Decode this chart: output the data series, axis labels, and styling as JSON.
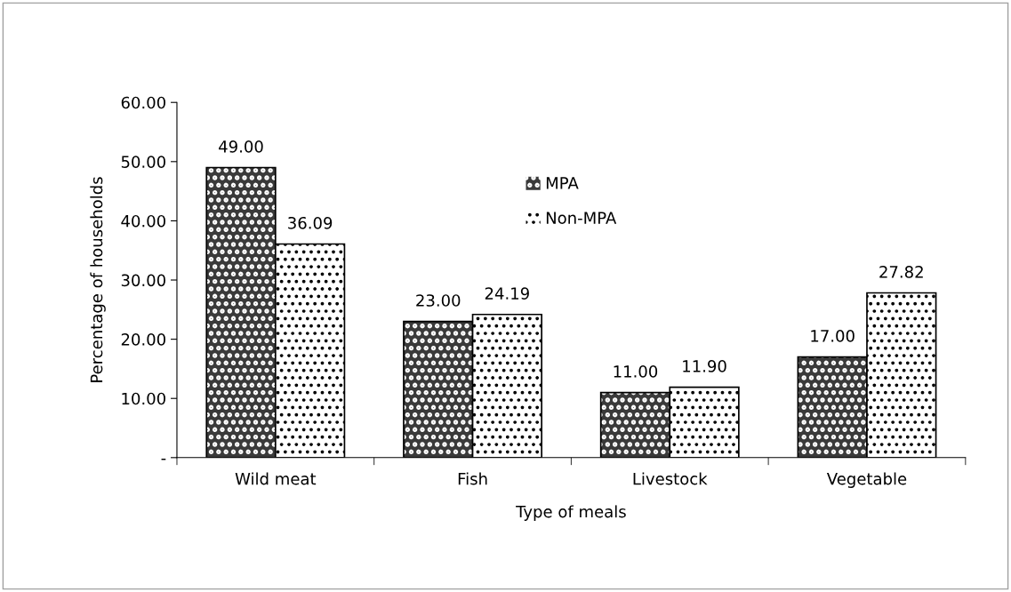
{
  "chart_data": {
    "type": "bar",
    "xlabel": "Type of meals",
    "ylabel": "Percentage of households",
    "categories": [
      "Wild meat",
      "Fish",
      "Livestock",
      "Vegetable"
    ],
    "series": [
      {
        "name": "MPA",
        "color": "#3a3a3a",
        "values": [
          49.0,
          23.0,
          11.0,
          17.0
        ],
        "value_labels": [
          "49.00",
          "23.00",
          "11.00",
          "17.00"
        ]
      },
      {
        "name": "Non-MPA",
        "color": "#ffffff",
        "values": [
          36.09,
          24.19,
          11.9,
          27.82
        ],
        "value_labels": [
          "36.09",
          "24.19",
          "11.90",
          "27.82"
        ]
      }
    ],
    "ylim": [
      0,
      60
    ],
    "yticks": [
      {
        "value": 0,
        "label": "-"
      },
      {
        "value": 10,
        "label": "10.00"
      },
      {
        "value": 20,
        "label": "20.00"
      },
      {
        "value": 30,
        "label": "30.00"
      },
      {
        "value": 40,
        "label": "40.00"
      },
      {
        "value": 50,
        "label": "50.00"
      },
      {
        "value": 60,
        "label": "60.00"
      }
    ],
    "grid": false,
    "legend": "center"
  }
}
